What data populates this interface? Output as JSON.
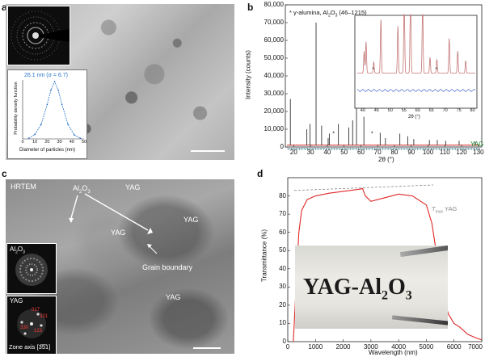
{
  "panels": {
    "a": {
      "letter": "a",
      "inset_title": "26.1 nm (σ = 6.7)",
      "ylabel": "Probability density function",
      "xlabel": "Diameter of particles (nm)",
      "xticks": [
        "0",
        "10",
        "20",
        "30",
        "40",
        "50"
      ]
    },
    "b": {
      "letter": "b",
      "legend_text_pre": "* γ-alumina, Al",
      "legend_text_sub": "2",
      "legend_text_mid": "O",
      "legend_text_sub2": "3",
      "legend_text_post": " (46–1215)",
      "ylabel": "Intensity (counts)",
      "xlabel": "2θ (°)",
      "yticks": [
        "0",
        "10,000",
        "20,000",
        "30,000",
        "40,000",
        "50,000",
        "60,000",
        "70,000",
        "80,000"
      ],
      "xticks": [
        "20",
        "30",
        "40",
        "50",
        "60",
        "70",
        "80",
        "90",
        "100",
        "110",
        "120",
        "130"
      ],
      "yag_label": "YAG",
      "inset_xticks": [
        "40",
        "45",
        "50",
        "55",
        "60",
        "65",
        "70",
        "75",
        "80"
      ],
      "inset_xlabel": "2θ (°)"
    },
    "c": {
      "letter": "c",
      "title": "HRTEM",
      "al2o3_pre": "Al",
      "al2o3_sub": "2",
      "al2o3_mid": "O",
      "al2o3_sub2": "3",
      "yag_labels": [
        "YAG",
        "YAG",
        "YAG",
        "YAG"
      ],
      "grain_boundary": "Grain boundary",
      "inset1_pre": "Al",
      "inset1_sub": "2",
      "inset1_mid": "O",
      "inset1_sub2": "3",
      "inset2_label": "YAG",
      "spots": [
        "017",
        "321",
        "330",
        "123"
      ],
      "zone_axis": "Zone axis [3̅5̅1]"
    },
    "d": {
      "letter": "d",
      "ylabel": "Transmittance (%)",
      "xlabel": "Wavelength (nm)",
      "yticks": [
        "0",
        "10",
        "20",
        "30",
        "40",
        "50",
        "60",
        "70",
        "80"
      ],
      "xticks": [
        "0",
        "1000",
        "2000",
        "3000",
        "4000",
        "5000",
        "6000",
        "7000"
      ],
      "tmax_pre": "T",
      "tmax_sub": "max",
      "tmax_post": " YAG",
      "photo_text_pre": "YAG-Al",
      "photo_text_sub": "2",
      "photo_text_mid": "O",
      "photo_text_sub2": "3"
    }
  },
  "chart_data": [
    {
      "type": "line",
      "panel": "a-inset",
      "title": "26.1 nm (σ = 6.7)",
      "xlabel": "Diameter of particles (nm)",
      "ylabel": "Probability density function",
      "xlim": [
        0,
        50
      ],
      "series": [
        {
          "x": [
            5,
            10,
            15,
            20,
            23,
            26,
            29,
            32,
            37,
            42,
            47
          ],
          "y": [
            0.01,
            0.08,
            0.25,
            0.6,
            0.85,
            1.0,
            0.85,
            0.6,
            0.25,
            0.07,
            0.01
          ]
        }
      ]
    },
    {
      "type": "line",
      "panel": "b",
      "xlabel": "2θ (°)",
      "ylabel": "Intensity (counts)",
      "xlim": [
        15,
        132
      ],
      "ylim": [
        0,
        80000
      ],
      "peaks": [
        [
          18,
          27000
        ],
        [
          27.8,
          10000
        ],
        [
          29.7,
          13000
        ],
        [
          33.3,
          70000
        ],
        [
          36.6,
          12000
        ],
        [
          40.5,
          5000
        ],
        [
          41.2,
          7500
        ],
        [
          46.6,
          13000
        ],
        [
          52.8,
          11000
        ],
        [
          55.1,
          15000
        ],
        [
          57.4,
          27000
        ],
        [
          61.8,
          17000
        ],
        [
          71.5,
          8000
        ],
        [
          74.6,
          5000
        ],
        [
          83.2,
          7500
        ],
        [
          87.9,
          6000
        ],
        [
          91.5,
          4500
        ],
        [
          100.8,
          4000
        ],
        [
          105.5,
          4000
        ],
        [
          110.5,
          3500
        ],
        [
          118.5,
          3500
        ],
        [
          128,
          3000
        ]
      ],
      "baseline": 1000,
      "star_markers_x": [
        44,
        67
      ],
      "inset_xlim": [
        38,
        81
      ]
    },
    {
      "type": "line",
      "panel": "d",
      "xlabel": "Wavelength (nm)",
      "ylabel": "Transmittance (%)",
      "xlim": [
        0,
        7000
      ],
      "ylim": [
        0,
        90
      ],
      "series": [
        {
          "name": "",
          "x": [
            200,
            300,
            400,
            500,
            700,
            1000,
            1500,
            2000,
            2500,
            2700,
            2800,
            3000,
            3500,
            4000,
            4500,
            5000,
            5200,
            5400,
            5600,
            5800,
            6000,
            6200,
            6500,
            6800,
            7000
          ],
          "y": [
            0,
            30,
            60,
            72,
            78,
            80,
            81.5,
            82.5,
            83.5,
            84,
            80,
            77,
            79,
            81,
            80,
            75,
            65,
            45,
            25,
            15,
            10,
            8,
            4,
            2,
            1
          ]
        },
        {
          "name": "",
          "x": [
            0,
            7000
          ],
          "y": [
            83,
            86
          ]
        }
      ]
    }
  ]
}
